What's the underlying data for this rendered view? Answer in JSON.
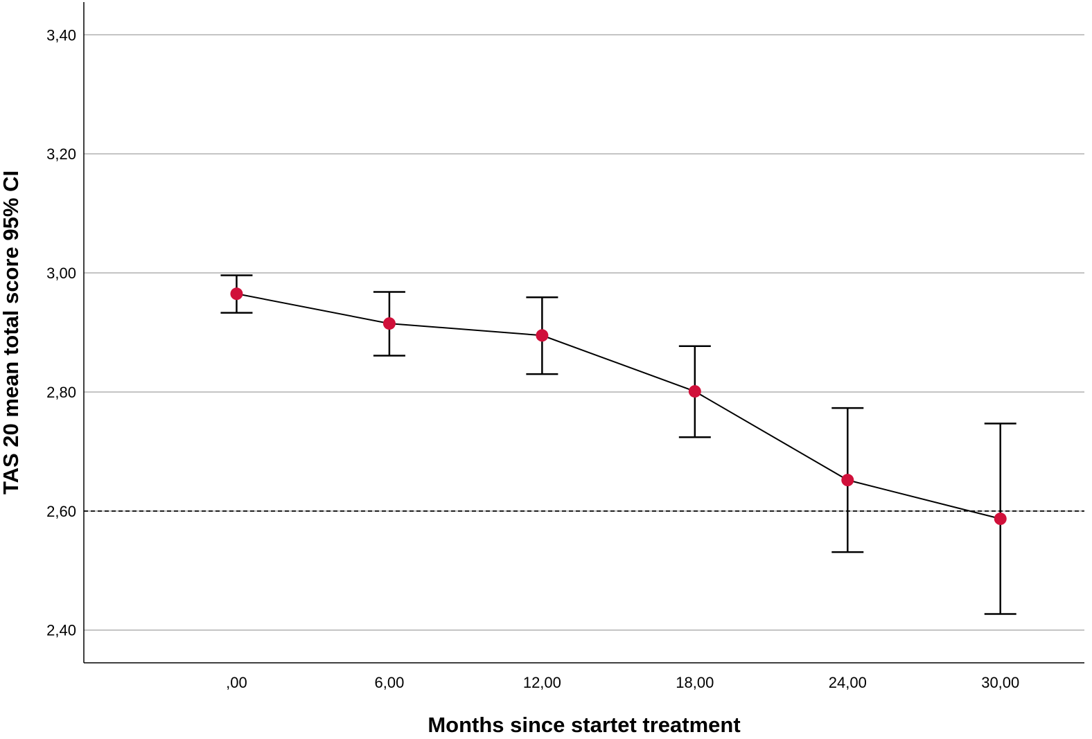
{
  "chart_data": {
    "type": "line",
    "title": "",
    "xlabel": "Months since startet treatment",
    "ylabel": "TAS 20 mean total score 95% CI",
    "categories": [
      ",00",
      "6,00",
      "12,00",
      "18,00",
      "24,00",
      "30,00"
    ],
    "x": [
      0,
      6,
      12,
      18,
      24,
      30
    ],
    "series": [
      {
        "name": "TAS 20 mean total score",
        "values": [
          2.965,
          2.915,
          2.895,
          2.801,
          2.652,
          2.587
        ],
        "ci_lower": [
          2.933,
          2.861,
          2.83,
          2.724,
          2.531,
          2.427
        ],
        "ci_upper": [
          2.996,
          2.968,
          2.959,
          2.877,
          2.773,
          2.747
        ]
      }
    ],
    "yticks": [
      2.4,
      2.6,
      2.8,
      3.0,
      3.2,
      3.4
    ],
    "ytick_labels": [
      "2,40",
      "2,60",
      "2,80",
      "3,00",
      "3,20",
      "3,40"
    ],
    "ylim": [
      2.345,
      3.455
    ],
    "xlim": [
      -6,
      33.3
    ],
    "grid": true,
    "reference_line": {
      "y": 2.6,
      "style": "dashed"
    },
    "colors": {
      "marker": "#d0103a",
      "line": "#000000",
      "grid": "#b0b0b0",
      "axis": "#000000"
    }
  }
}
